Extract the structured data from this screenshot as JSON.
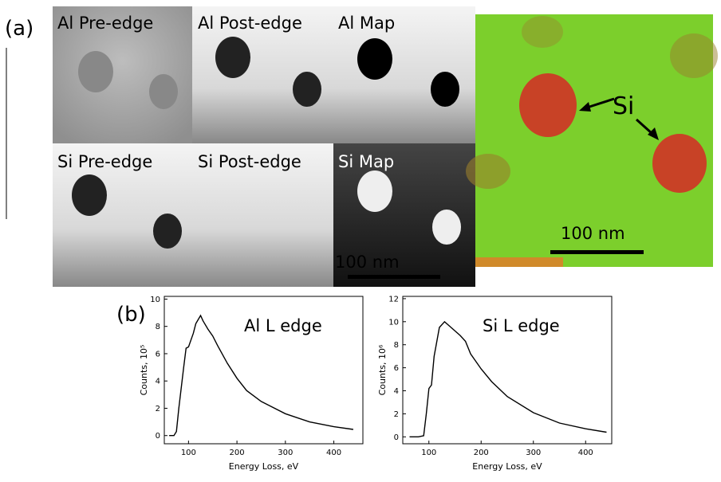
{
  "panel_a": {
    "label": "(a)",
    "tiles": [
      "Al Pre-edge",
      "Al Post-edge",
      "Al Map",
      "Si Pre-edge",
      "Si Post-edge",
      "Si Map"
    ],
    "scale_bar": "100 nm",
    "overlay_scale_bar": "100 nm",
    "overlay_label": "Si"
  },
  "panel_b": {
    "label": "(b)"
  },
  "chart_data": [
    {
      "type": "line",
      "title": "Al L edge",
      "xlabel": "Energy Loss, eV",
      "ylabel": "Counts, 10⁵",
      "x": [
        60,
        70,
        75,
        80,
        90,
        95,
        100,
        105,
        110,
        115,
        120,
        125,
        130,
        140,
        150,
        160,
        180,
        200,
        220,
        250,
        300,
        350,
        400,
        440
      ],
      "values": [
        0,
        0,
        0.3,
        2,
        5,
        6.4,
        6.5,
        7,
        7.5,
        8.2,
        8.5,
        8.8,
        8.4,
        7.8,
        7.3,
        6.6,
        5.3,
        4.2,
        3.3,
        2.5,
        1.6,
        1.0,
        0.65,
        0.45
      ],
      "color": "#000000",
      "xlim": [
        50,
        460
      ],
      "ylim": [
        -0.6,
        10.2
      ],
      "xticks": [
        100,
        200,
        300,
        400
      ],
      "yticks": [
        0,
        2,
        4,
        6,
        8,
        10
      ]
    },
    {
      "type": "line",
      "title": "Si L edge",
      "xlabel": "Energy Loss, eV",
      "ylabel": "Counts, 10⁶",
      "x": [
        63,
        80,
        90,
        95,
        100,
        105,
        110,
        120,
        130,
        140,
        150,
        160,
        170,
        180,
        200,
        220,
        250,
        300,
        350,
        400,
        440
      ],
      "values": [
        0,
        0,
        0.1,
        2,
        4.2,
        4.5,
        7,
        9.5,
        10,
        9.6,
        9.2,
        8.8,
        8.3,
        7.2,
        5.9,
        4.8,
        3.5,
        2.1,
        1.2,
        0.7,
        0.4
      ],
      "color": "#000000",
      "xlim": [
        50,
        450
      ],
      "ylim": [
        -0.6,
        12.2
      ],
      "xticks": [
        100,
        200,
        300,
        400
      ],
      "yticks": [
        0,
        2,
        4,
        6,
        8,
        10,
        12
      ]
    }
  ]
}
